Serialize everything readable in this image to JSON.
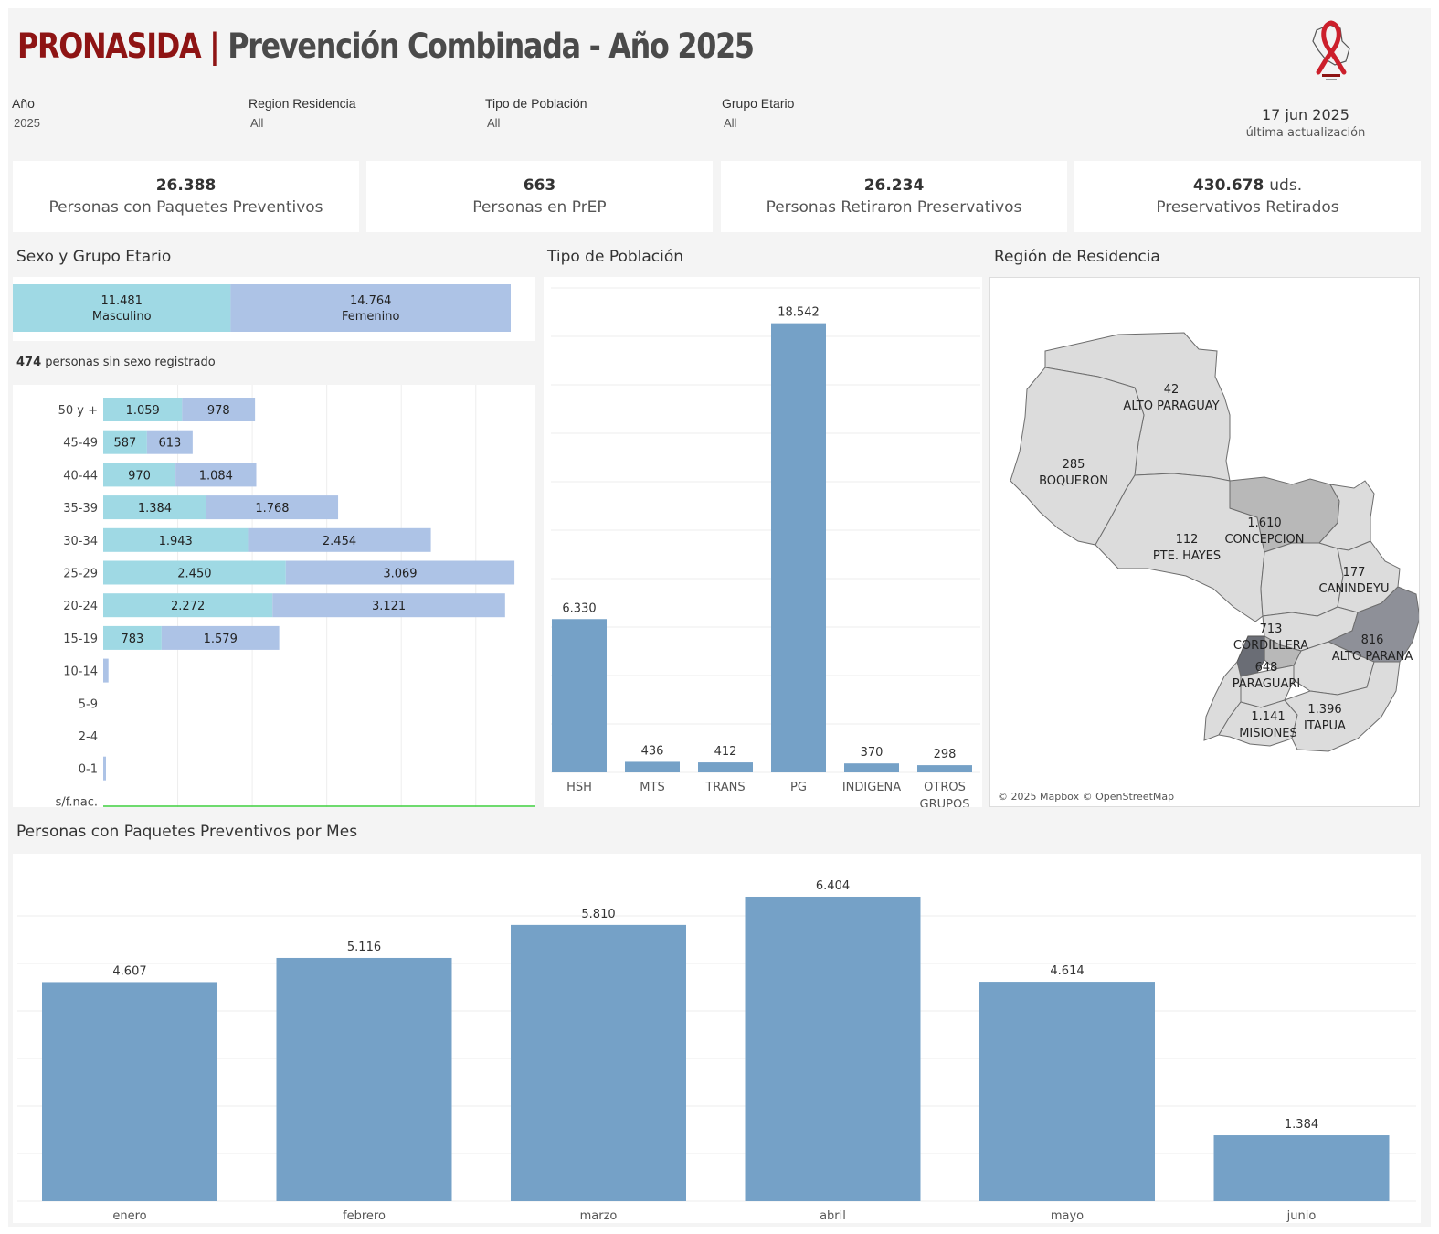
{
  "header": {
    "brand": "PRONASIDA",
    "separator": "|",
    "title": "Prevención Combinada - Año 2025"
  },
  "filters": [
    {
      "label": "Año",
      "value": "2025"
    },
    {
      "label": "Region Residencia",
      "value": "All"
    },
    {
      "label": "Tipo de Población",
      "value": "All"
    },
    {
      "label": "Grupo Etario",
      "value": "All"
    }
  ],
  "update": {
    "date": "17 jun 2025",
    "label": "última actualización"
  },
  "kpis": [
    {
      "value": "26.388",
      "unit": "",
      "label": "Personas con Paquetes Preventivos"
    },
    {
      "value": "663",
      "unit": "",
      "label": "Personas en PrEP"
    },
    {
      "value": "26.234",
      "unit": "",
      "label": "Personas Retiraron Preservativos"
    },
    {
      "value": "430.678",
      "unit": "uds.",
      "label": "Preservativos Retirados"
    }
  ],
  "sections": {
    "sex_age": "Sexo y Grupo Etario",
    "population": "Tipo de Población",
    "region": "Región de Residencia",
    "monthly": "Personas con Paquetes Preventivos por Mes"
  },
  "no_sex_note": {
    "count": "474",
    "text": "personas sin sexo registrado"
  },
  "map_attribution": "© 2025 Mapbox © OpenStreetMap",
  "colors": {
    "male": "#9fd9e4",
    "female": "#adc3e6",
    "bar": "#75a1c7",
    "brand": "#8e1414",
    "map_light": "#dcdcdc",
    "map_mid": "#b8b8b8",
    "map_dark": "#8e9098",
    "map_darkest": "#6a6d75"
  },
  "chart_data": [
    {
      "type": "bar",
      "title": "Sexo y Grupo Etario",
      "orientation": "horizontal-stacked",
      "series": [
        {
          "name": "Masculino",
          "total": 11481,
          "total_label": "11.481"
        },
        {
          "name": "Femenino",
          "total": 14764,
          "total_label": "14.764"
        }
      ]
    },
    {
      "type": "bar",
      "title": "Sexo y Grupo Etario",
      "orientation": "horizontal-stacked",
      "categories": [
        "50 y +",
        "45-49",
        "40-44",
        "35-39",
        "30-34",
        "25-29",
        "20-24",
        "15-19",
        "10-14",
        "5-9",
        "2-4",
        "0-1",
        "s/f.nac."
      ],
      "series": [
        {
          "name": "Masculino",
          "values": [
            1059,
            587,
            970,
            1384,
            1943,
            2450,
            2272,
            783,
            0,
            0,
            0,
            0,
            0
          ],
          "labels": [
            "1.059",
            "587",
            "970",
            "1.384",
            "1.943",
            "2.450",
            "2.272",
            "783",
            "",
            "",
            "",
            "",
            ""
          ]
        },
        {
          "name": "Femenino",
          "values": [
            978,
            613,
            1084,
            1768,
            2454,
            3069,
            3121,
            1579,
            70,
            0,
            0,
            20,
            0
          ],
          "labels": [
            "978",
            "613",
            "1.084",
            "1.768",
            "2.454",
            "3.069",
            "3.121",
            "1.579",
            "",
            "",
            "",
            "",
            ""
          ]
        }
      ],
      "xlim": [
        0,
        5800
      ]
    },
    {
      "type": "bar",
      "title": "Tipo de Población",
      "categories": [
        "HSH",
        "MTS",
        "TRANS",
        "PG",
        "INDIGENA",
        "OTROS GRUPOS"
      ],
      "values": [
        6330,
        436,
        412,
        18542,
        370,
        298
      ],
      "labels": [
        "6.330",
        "436",
        "412",
        "18.542",
        "370",
        "298"
      ],
      "ylim": [
        0,
        20000
      ]
    },
    {
      "type": "bar",
      "title": "Personas con Paquetes Preventivos por Mes",
      "categories": [
        "enero",
        "febrero",
        "marzo",
        "abril",
        "mayo",
        "junio"
      ],
      "values": [
        4607,
        5116,
        5810,
        6404,
        4614,
        1384
      ],
      "labels": [
        "4.607",
        "5.116",
        "5.810",
        "6.404",
        "4.614",
        "1.384"
      ],
      "ylim": [
        0,
        6500
      ]
    }
  ],
  "map_regions": [
    {
      "name": "ALTO PARAGUAY",
      "value": "42"
    },
    {
      "name": "BOQUERON",
      "value": "285"
    },
    {
      "name": "CONCEPCION",
      "value": "1.610"
    },
    {
      "name": "PTE. HAYES",
      "value": "112"
    },
    {
      "name": "CANINDEYU",
      "value": "177"
    },
    {
      "name": "CORDILLERA",
      "value": "713"
    },
    {
      "name": "ALTO PARANA",
      "value": "816"
    },
    {
      "name": "PARAGUARI",
      "value": "648"
    },
    {
      "name": "MISIONES",
      "value": "1.141"
    },
    {
      "name": "ITAPUA",
      "value": "1.396"
    }
  ]
}
